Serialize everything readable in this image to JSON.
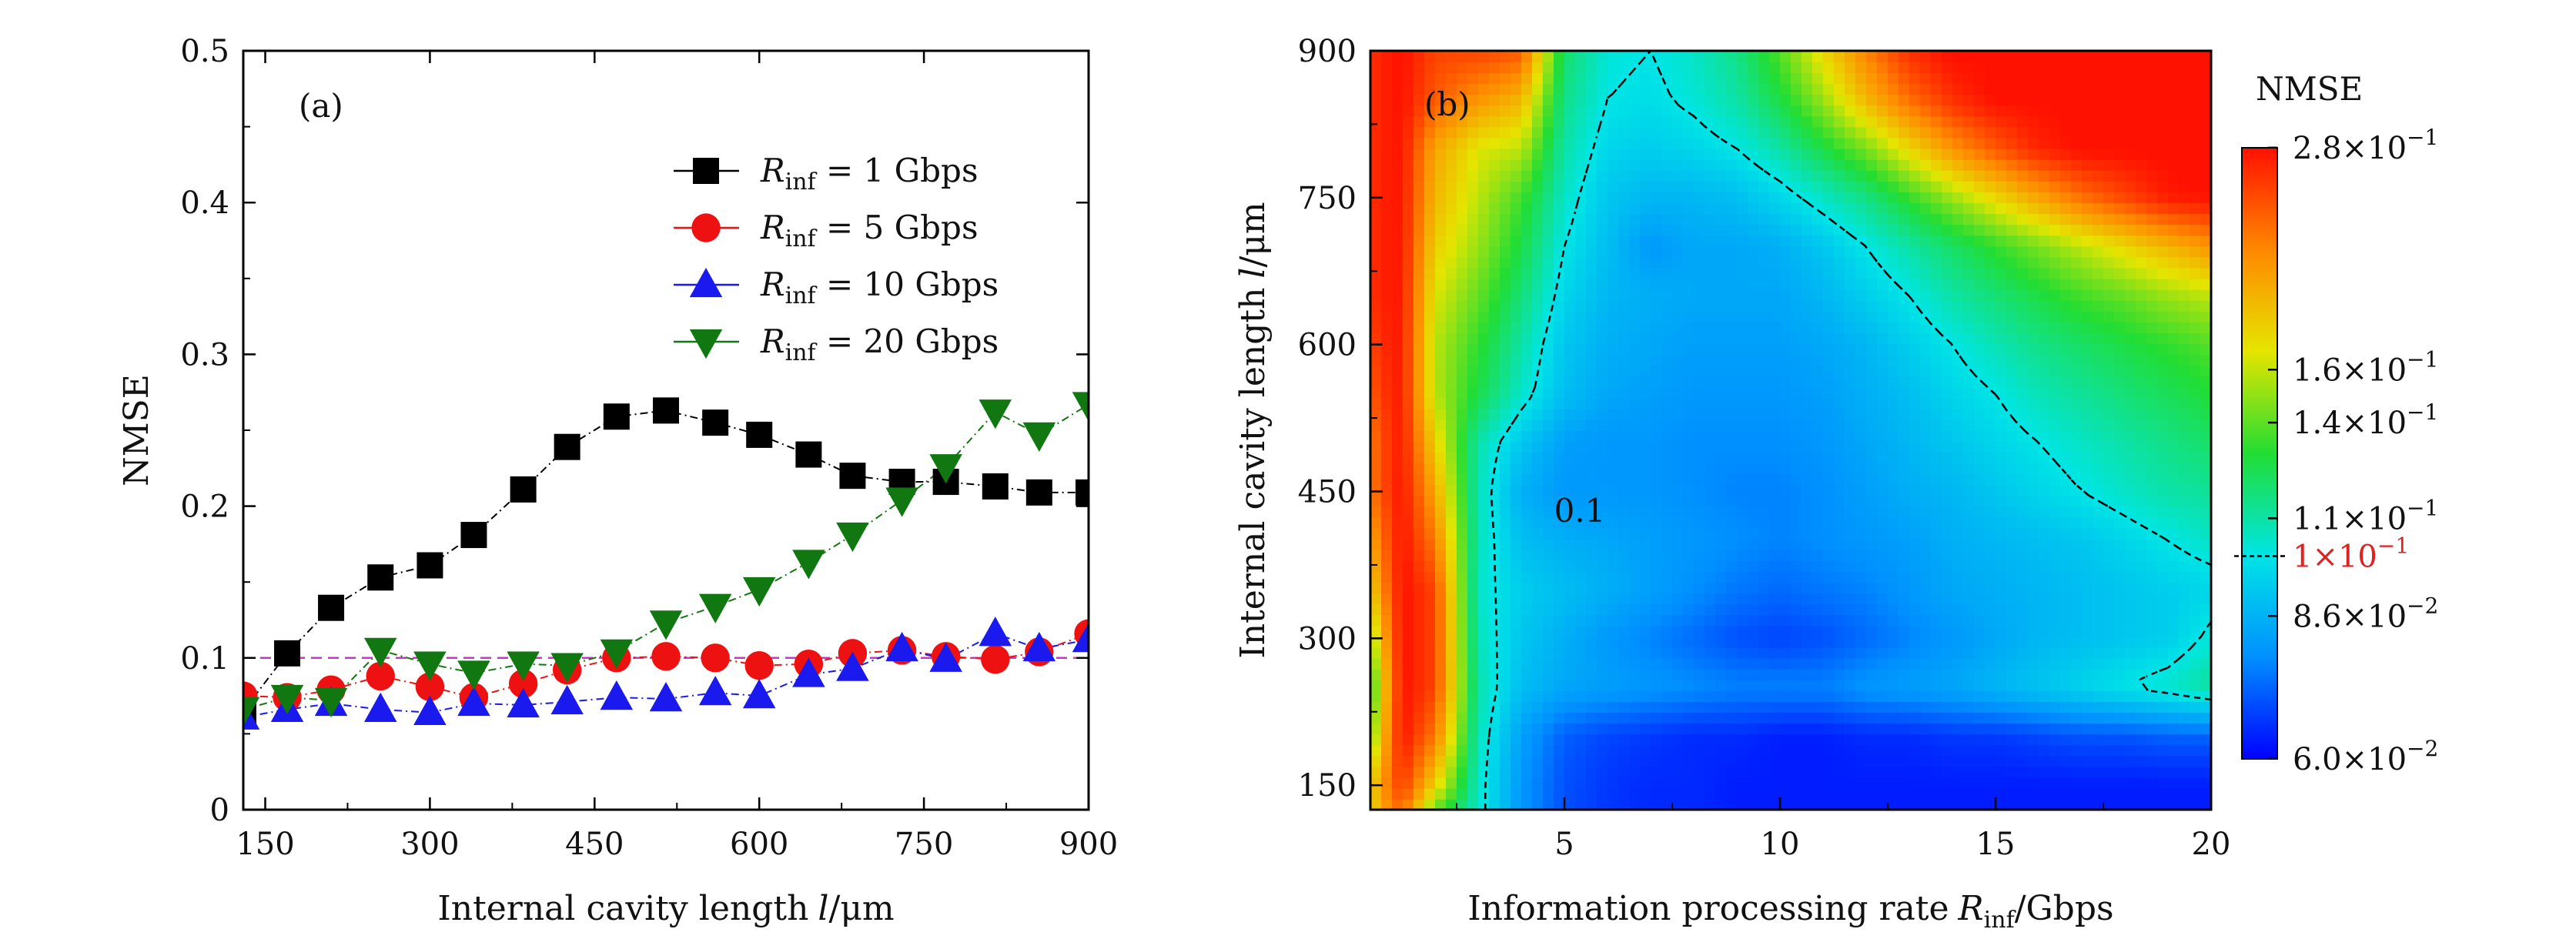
{
  "chart_data": [
    {
      "panel_label": "(a)",
      "type": "line",
      "xlabel": "Internal cavity length",
      "xlabel_symbol": "l",
      "xlabel_unit": "/μm",
      "ylabel": "NMSE",
      "xlim": [
        130,
        900
      ],
      "ylim": [
        0,
        0.5
      ],
      "xticks": [
        "150",
        "300",
        "450",
        "600",
        "750",
        "900"
      ],
      "yticks": [
        "0",
        "0.1",
        "0.2",
        "0.3",
        "0.4",
        "0.5"
      ],
      "x": [
        130,
        170,
        210,
        255,
        300,
        340,
        385,
        425,
        470,
        515,
        560,
        600,
        645,
        685,
        730,
        770,
        815,
        855,
        900
      ],
      "reference_line": {
        "y": 0.1,
        "color": "#cc33cc"
      },
      "legend_position": "upper-right",
      "series": [
        {
          "name": "R_inf = 1 Gbps",
          "legend": {
            "sym": "R",
            "sub": "inf",
            "rest": " = 1   Gbps"
          },
          "marker": "square",
          "color": "#000000",
          "values": [
            0.065,
            0.103,
            0.133,
            0.153,
            0.161,
            0.181,
            0.211,
            0.239,
            0.259,
            0.263,
            0.255,
            0.247,
            0.234,
            0.22,
            0.216,
            0.216,
            0.213,
            0.209,
            0.209
          ]
        },
        {
          "name": "R_inf = 5 Gbps",
          "legend": {
            "sym": "R",
            "sub": "inf",
            "rest": " = 5   Gbps"
          },
          "marker": "circle",
          "color": "#ee1111",
          "values": [
            0.075,
            0.074,
            0.079,
            0.088,
            0.081,
            0.074,
            0.083,
            0.092,
            0.1,
            0.101,
            0.1,
            0.095,
            0.096,
            0.103,
            0.105,
            0.101,
            0.099,
            0.104,
            0.116
          ]
        },
        {
          "name": "R_inf = 10 Gbps",
          "legend": {
            "sym": "R",
            "sub": "inf",
            "rest": " = 10 Gbps"
          },
          "marker": "triangle-up",
          "color": "#1a1aee",
          "values": [
            0.061,
            0.066,
            0.07,
            0.066,
            0.064,
            0.07,
            0.069,
            0.071,
            0.074,
            0.073,
            0.077,
            0.075,
            0.089,
            0.093,
            0.106,
            0.099,
            0.116,
            0.106,
            0.112
          ]
        },
        {
          "name": "R_inf = 20 Gbps",
          "legend": {
            "sym": "R",
            "sub": "inf",
            "rest": " = 20 Gbps"
          },
          "marker": "triangle-down",
          "color": "#117711",
          "values": [
            0.066,
            0.074,
            0.072,
            0.105,
            0.096,
            0.09,
            0.096,
            0.095,
            0.104,
            0.123,
            0.134,
            0.145,
            0.163,
            0.181,
            0.204,
            0.226,
            0.262,
            0.247,
            0.267
          ]
        }
      ]
    },
    {
      "panel_label": "(b)",
      "type": "heatmap",
      "xlabel": "Information processing rate",
      "xlabel_symbol": "R",
      "xlabel_sub": "inf",
      "xlabel_unit": "/Gbps",
      "ylabel": "Internal cavity length",
      "ylabel_symbol": "l",
      "ylabel_unit": "/μm",
      "xlim": [
        0.5,
        20
      ],
      "ylim": [
        125,
        900
      ],
      "xticks": [
        "5",
        "10",
        "15",
        "20"
      ],
      "yticks": [
        "150",
        "300",
        "450",
        "600",
        "750",
        "900"
      ],
      "x": [
        0.5,
        1.2,
        2,
        3,
        4,
        5,
        6,
        7,
        8,
        9,
        10,
        11,
        12,
        13,
        14,
        15,
        16,
        17,
        18,
        19,
        20
      ],
      "y": [
        125,
        150,
        200,
        250,
        300,
        350,
        400,
        450,
        500,
        550,
        600,
        650,
        700,
        750,
        800,
        850,
        900
      ],
      "z_log10": [
        [
          -0.76,
          -0.62,
          -0.85,
          -0.98,
          -1.1,
          -1.16,
          -1.18,
          -1.19,
          -1.19,
          -1.2,
          -1.2,
          -1.2,
          -1.2,
          -1.2,
          -1.2,
          -1.2,
          -1.2,
          -1.2,
          -1.2,
          -1.2,
          -1.2
        ],
        [
          -0.75,
          -0.58,
          -0.75,
          -0.98,
          -1.1,
          -1.16,
          -1.18,
          -1.19,
          -1.19,
          -1.2,
          -1.2,
          -1.2,
          -1.2,
          -1.2,
          -1.2,
          -1.2,
          -1.2,
          -1.2,
          -1.2,
          -1.2,
          -1.2
        ],
        [
          -0.85,
          -0.55,
          -0.65,
          -0.97,
          -1.09,
          -1.15,
          -1.17,
          -1.18,
          -1.19,
          -1.19,
          -1.2,
          -1.2,
          -1.19,
          -1.19,
          -1.18,
          -1.18,
          -1.17,
          -1.16,
          -1.16,
          -1.15,
          -1.15
        ],
        [
          -0.9,
          -0.55,
          -0.6,
          -0.96,
          -1.05,
          -1.08,
          -1.09,
          -1.1,
          -1.11,
          -1.12,
          -1.12,
          -1.12,
          -1.1,
          -1.09,
          -1.08,
          -1.06,
          -1.04,
          -1.02,
          -1.0,
          -0.98,
          -0.95
        ],
        [
          -0.83,
          -0.55,
          -0.6,
          -0.97,
          -1.04,
          -1.07,
          -1.1,
          -1.12,
          -1.14,
          -1.16,
          -1.17,
          -1.16,
          -1.14,
          -1.12,
          -1.1,
          -1.08,
          -1.06,
          -1.05,
          -1.04,
          -1.03,
          -0.99
        ],
        [
          -0.75,
          -0.55,
          -0.6,
          -0.98,
          -1.03,
          -1.05,
          -1.07,
          -1.09,
          -1.11,
          -1.13,
          -1.14,
          -1.13,
          -1.12,
          -1.1,
          -1.08,
          -1.07,
          -1.06,
          -1.05,
          -1.04,
          -1.03,
          -1.02
        ],
        [
          -0.7,
          -0.55,
          -0.65,
          -0.97,
          -1.05,
          -1.07,
          -1.08,
          -1.09,
          -1.1,
          -1.11,
          -1.12,
          -1.11,
          -1.1,
          -1.09,
          -1.07,
          -1.06,
          -1.05,
          -1.04,
          -1.02,
          -1.0,
          -0.98
        ],
        [
          -0.65,
          -0.55,
          -0.7,
          -0.97,
          -1.07,
          -1.1,
          -1.1,
          -1.1,
          -1.11,
          -1.12,
          -1.12,
          -1.11,
          -1.09,
          -1.07,
          -1.06,
          -1.04,
          -1.02,
          -1.0,
          -0.98,
          -0.96,
          -0.95
        ],
        [
          -0.65,
          -0.55,
          -0.75,
          -0.96,
          -1.04,
          -1.09,
          -1.1,
          -1.1,
          -1.11,
          -1.11,
          -1.11,
          -1.1,
          -1.08,
          -1.06,
          -1.04,
          -1.02,
          -1.0,
          -0.98,
          -0.96,
          -0.94,
          -0.92
        ],
        [
          -0.62,
          -0.55,
          -0.8,
          -0.9,
          -0.98,
          -1.05,
          -1.08,
          -1.09,
          -1.1,
          -1.1,
          -1.1,
          -1.09,
          -1.07,
          -1.05,
          -1.02,
          -1.0,
          -0.97,
          -0.95,
          -0.93,
          -0.91,
          -0.89
        ],
        [
          -0.6,
          -0.55,
          -0.8,
          -0.88,
          -0.96,
          -1.04,
          -1.07,
          -1.08,
          -1.09,
          -1.09,
          -1.09,
          -1.08,
          -1.06,
          -1.03,
          -1.0,
          -0.97,
          -0.94,
          -0.92,
          -0.9,
          -0.88,
          -0.86
        ],
        [
          -0.58,
          -0.55,
          -0.78,
          -0.85,
          -0.93,
          -1.02,
          -1.06,
          -1.07,
          -1.08,
          -1.08,
          -1.08,
          -1.06,
          -1.03,
          -1.0,
          -0.96,
          -0.93,
          -0.9,
          -0.87,
          -0.85,
          -0.82,
          -0.8
        ],
        [
          -0.58,
          -0.55,
          -0.75,
          -0.82,
          -0.9,
          -1.0,
          -1.05,
          -1.1,
          -1.08,
          -1.08,
          -1.07,
          -1.04,
          -1.0,
          -0.96,
          -0.92,
          -0.88,
          -0.84,
          -0.8,
          -0.76,
          -0.72,
          -0.68
        ],
        [
          -0.58,
          -0.55,
          -0.72,
          -0.8,
          -0.87,
          -0.98,
          -1.04,
          -1.06,
          -1.06,
          -1.05,
          -1.02,
          -0.98,
          -0.94,
          -0.88,
          -0.82,
          -0.76,
          -0.7,
          -0.64,
          -0.6,
          -0.56,
          -0.55
        ],
        [
          -0.58,
          -0.55,
          -0.7,
          -0.78,
          -0.8,
          -0.96,
          -1.02,
          -1.03,
          -1.02,
          -1.0,
          -0.96,
          -0.9,
          -0.84,
          -0.76,
          -0.68,
          -0.62,
          -0.57,
          -0.55,
          -0.55,
          -0.55,
          -0.55
        ],
        [
          -0.58,
          -0.55,
          -0.62,
          -0.68,
          -0.72,
          -0.94,
          -1.0,
          -1.01,
          -0.99,
          -0.96,
          -0.9,
          -0.82,
          -0.72,
          -0.64,
          -0.58,
          -0.55,
          -0.55,
          -0.55,
          -0.55,
          -0.55,
          -0.55
        ],
        [
          -0.58,
          -0.55,
          -0.6,
          -0.6,
          -0.62,
          -0.92,
          -0.99,
          -1.0,
          -0.98,
          -0.94,
          -0.86,
          -0.76,
          -0.66,
          -0.58,
          -0.55,
          -0.55,
          -0.55,
          -0.55,
          -0.55,
          -0.55,
          -0.55
        ]
      ],
      "contour_level": 0.1,
      "contour_label": "0.1",
      "contour_label_at": {
        "x": 5,
        "y": 430
      },
      "colorbar": {
        "title": "NMSE",
        "range_log10": [
          -1.222,
          -0.553
        ],
        "ticks": [
          {
            "mant": "2.8",
            "exp": "−1",
            "value": 0.28,
            "color": "#111111"
          },
          {
            "mant": "1.6",
            "exp": "−1",
            "value": 0.16,
            "color": "#111111"
          },
          {
            "mant": "1.4",
            "exp": "−1",
            "value": 0.14,
            "color": "#111111"
          },
          {
            "mant": "1.1",
            "exp": "−1",
            "value": 0.11,
            "color": "#111111"
          },
          {
            "mant": "1",
            "exp": "−1",
            "value": 0.1,
            "color": "#dd2222"
          },
          {
            "mant": "8.6",
            "exp": "−2",
            "value": 0.086,
            "color": "#111111"
          },
          {
            "mant": "6.0",
            "exp": "−2",
            "value": 0.06,
            "color": "#111111"
          }
        ],
        "colormap": [
          "#0000ff",
          "#0090ff",
          "#00e5e5",
          "#22dd33",
          "#e5e500",
          "#ff8800",
          "#ff1100"
        ],
        "position": "right"
      }
    }
  ]
}
